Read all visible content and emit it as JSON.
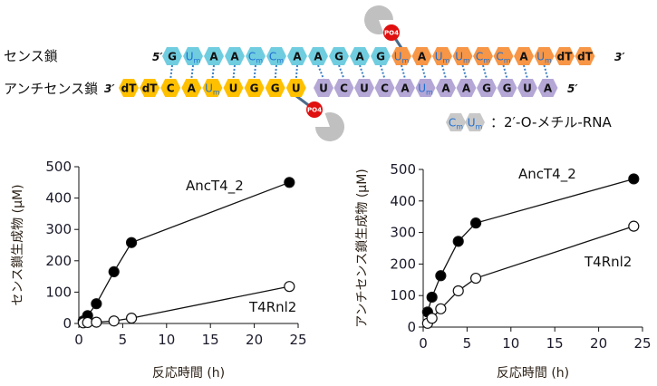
{
  "diagram": {
    "sense_label": "センス鎖",
    "antisense_label": "アンチセンス鎖",
    "sense_5": "5′",
    "sense_3": "3′",
    "antisense_3": "3′",
    "antisense_5": "5′",
    "phosphate_label": "PO4",
    "sense_segments": [
      {
        "color": "#70cde0",
        "nts": [
          {
            "b": "G"
          },
          {
            "b": "U",
            "m": "m"
          },
          {
            "b": "A"
          },
          {
            "b": "A"
          },
          {
            "b": "C",
            "m": "m"
          },
          {
            "b": "C",
            "m": "m"
          },
          {
            "b": "A"
          },
          {
            "b": "A"
          },
          {
            "b": "G"
          },
          {
            "b": "A"
          },
          {
            "b": "G"
          }
        ]
      },
      {
        "color": "#f79646",
        "nts": [
          {
            "b": "U",
            "m": "m"
          },
          {
            "b": "A"
          },
          {
            "b": "U",
            "m": "m"
          },
          {
            "b": "U",
            "m": "m"
          },
          {
            "b": "C",
            "m": "m"
          },
          {
            "b": "C",
            "m": "m"
          },
          {
            "b": "A"
          },
          {
            "b": "U",
            "m": "m"
          },
          {
            "b": "dT"
          },
          {
            "b": "dT"
          }
        ]
      }
    ],
    "antisense_segments": [
      {
        "color": "#ffc000",
        "nts": [
          {
            "b": "dT"
          },
          {
            "b": "dT"
          },
          {
            "b": "C"
          },
          {
            "b": "A"
          },
          {
            "b": "U",
            "m": "m"
          },
          {
            "b": "U"
          },
          {
            "b": "G"
          },
          {
            "b": "G"
          },
          {
            "b": "U"
          }
        ]
      },
      {
        "color": "#b4a7d6",
        "nts": [
          {
            "b": "U"
          },
          {
            "b": "C"
          },
          {
            "b": "U"
          },
          {
            "b": "C"
          },
          {
            "b": "A"
          },
          {
            "b": "U",
            "m": "m"
          },
          {
            "b": "A"
          },
          {
            "b": "A"
          },
          {
            "b": "G"
          },
          {
            "b": "G"
          },
          {
            "b": "U"
          },
          {
            "b": "A"
          }
        ]
      }
    ],
    "legend": {
      "nts": [
        {
          "b": "C",
          "m": "m"
        },
        {
          "b": "U",
          "m": "m"
        }
      ],
      "text": "：2′-O-メチル-RNA",
      "color": "#c8c8c8"
    },
    "colors": {
      "phosphate": "#e01010",
      "enzyme": "#c0c0c0",
      "modified_text": "#1e6fd0",
      "pair_line": "#3b7fc4"
    }
  },
  "chart_data": [
    {
      "type": "line",
      "title": "",
      "xlabel": "反応時間 (h)",
      "ylabel": "センス鎖生成物 (µM)",
      "xlim": [
        0,
        25
      ],
      "ylim": [
        0,
        500
      ],
      "xticks": [
        "0",
        "5",
        "10",
        "15",
        "20",
        "25"
      ],
      "yticks": [
        "0",
        "100",
        "200",
        "300",
        "400",
        "500"
      ],
      "series": [
        {
          "name": "AncT4_2",
          "marker": "filled",
          "x": [
            0.5,
            1,
            2,
            4,
            6,
            24
          ],
          "y": [
            8,
            25,
            63,
            165,
            258,
            450
          ]
        },
        {
          "name": "T4Rnl2",
          "marker": "open",
          "x": [
            0.5,
            1,
            2,
            4,
            6,
            24
          ],
          "y": [
            2,
            3,
            4,
            8,
            17,
            118
          ]
        }
      ]
    },
    {
      "type": "line",
      "title": "",
      "xlabel": "反応時間 (h)",
      "ylabel": "アンチセンス鎖生成物 (µM)",
      "xlim": [
        0,
        25
      ],
      "ylim": [
        0,
        500
      ],
      "xticks": [
        "0",
        "5",
        "10",
        "15",
        "20",
        "25"
      ],
      "yticks": [
        "0",
        "100",
        "200",
        "300",
        "400",
        "500"
      ],
      "series": [
        {
          "name": "AncT4_2",
          "marker": "filled",
          "x": [
            0.5,
            1,
            2,
            4,
            6,
            24
          ],
          "y": [
            48,
            95,
            163,
            272,
            330,
            470
          ]
        },
        {
          "name": "T4Rnl2",
          "marker": "open",
          "x": [
            0.5,
            1,
            2,
            4,
            6,
            24
          ],
          "y": [
            12,
            28,
            58,
            115,
            155,
            320
          ]
        }
      ]
    }
  ]
}
